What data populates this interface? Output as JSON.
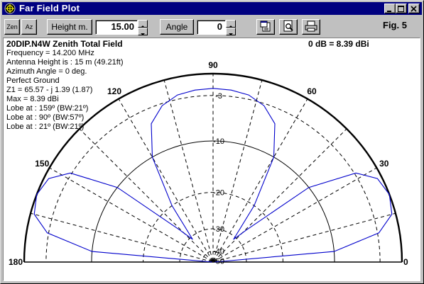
{
  "window": {
    "title": "Far Field Plot"
  },
  "toolbar": {
    "zen_label": "Zen",
    "az_label": "Az",
    "height_label": "Height m.",
    "height_value": "15.00",
    "angle_label": "Angle",
    "angle_value": "0",
    "fig_label": "Fig. 5"
  },
  "plot": {
    "title": "20DIP.N4W Zenith Total Field",
    "db_ref": "0 dB = 8.39 dBi",
    "info_lines": [
      "Frequency  =  14.200 MHz",
      "Antenna Height is : 15 m (49.21ft)",
      "Azimuth Angle = 0 deg.",
      "Perfect Ground",
      "Z1 = 65.57  -  j 1.39 (1.87)",
      "Max = 8.39 dBi",
      "Lobe at : 159º (BW:21º)",
      "Lobe at : 90º (BW:57º)",
      "Lobe at : 21º (BW:21º)"
    ],
    "angle_labels": [
      "180",
      "150",
      "120",
      "90",
      "60",
      "30",
      "0"
    ],
    "ring_labels": [
      "-3",
      "-10",
      "-20",
      "-30",
      "-40",
      "-50"
    ]
  },
  "chart_data": {
    "type": "polar",
    "title": "20DIP.N4W Zenith Total Field",
    "angle_range_deg": [
      0,
      180
    ],
    "radial_rings_db": [
      0,
      -3,
      -10,
      -20,
      -30,
      -40,
      -50
    ],
    "series": [
      {
        "color": "#0000cc",
        "points_deg_db": [
          [
            0,
            -50
          ],
          [
            5,
            -10
          ],
          [
            10,
            -2.8
          ],
          [
            15,
            -0.5
          ],
          [
            21,
            0
          ],
          [
            27,
            -0.6
          ],
          [
            32,
            -2.8
          ],
          [
            38,
            -10
          ],
          [
            44,
            -26
          ],
          [
            48,
            -31
          ],
          [
            54,
            -20
          ],
          [
            60,
            -10
          ],
          [
            66,
            -5.2
          ],
          [
            72,
            -3.3
          ],
          [
            78,
            -2.4
          ],
          [
            84,
            -2.1
          ],
          [
            90,
            -2.0
          ],
          [
            96,
            -2.1
          ],
          [
            102,
            -2.4
          ],
          [
            108,
            -3.3
          ],
          [
            114,
            -5.2
          ],
          [
            120,
            -10
          ],
          [
            126,
            -20
          ],
          [
            132,
            -31
          ],
          [
            136,
            -26
          ],
          [
            142,
            -10
          ],
          [
            148,
            -2.8
          ],
          [
            153,
            -0.6
          ],
          [
            159,
            0
          ],
          [
            165,
            -0.5
          ],
          [
            170,
            -2.8
          ],
          [
            175,
            -10
          ],
          [
            180,
            -50
          ]
        ]
      }
    ],
    "grid": true
  },
  "colors": {
    "titlebar": "#000080",
    "pattern": "#0000cc",
    "grid": "#000000"
  }
}
